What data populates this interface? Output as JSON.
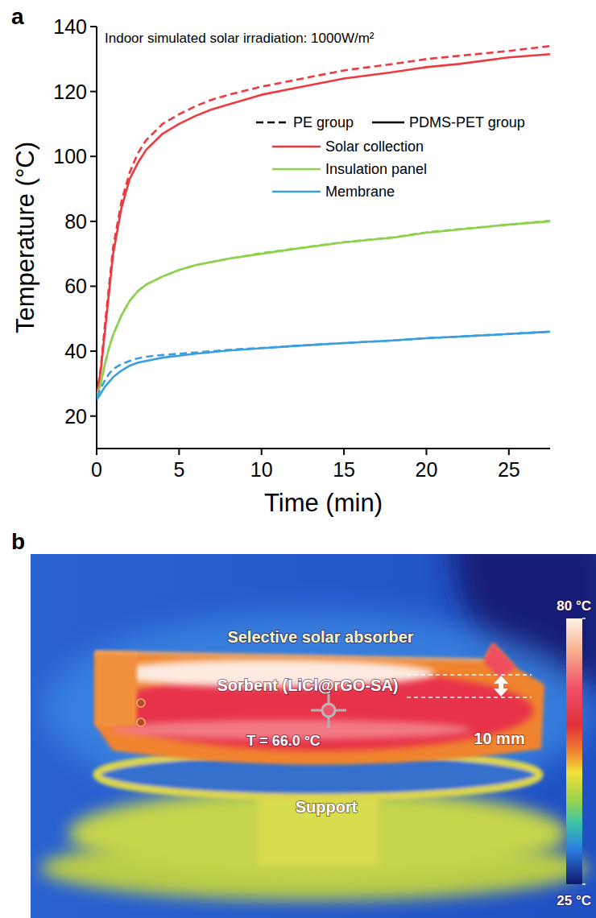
{
  "chart_data": {
    "type": "line",
    "panel_label": "a",
    "annotation": "Indoor simulated solar irradiation: 1000W/m²",
    "x_label": "Time (min)",
    "y_label": "Temperature (°C)",
    "xlim": [
      0,
      27.5
    ],
    "ylim": [
      10,
      140
    ],
    "xticks": [
      0,
      5,
      10,
      15,
      20,
      25
    ],
    "yticks": [
      20,
      40,
      60,
      80,
      100,
      120,
      140
    ],
    "x": [
      0,
      0.25,
      0.5,
      0.75,
      1,
      1.5,
      2,
      2.5,
      3,
      4,
      5,
      6,
      7,
      8,
      10,
      12,
      15,
      18,
      20,
      22,
      25,
      27.5
    ],
    "series": [
      {
        "name": "Solar collection",
        "group": "PE group",
        "color": "#ee3a3f",
        "line_style": "dashed",
        "values": [
          26,
          35,
          48,
          60,
          72,
          86,
          95,
          101,
          105,
          110,
          113,
          115.5,
          117.5,
          119,
          121.5,
          123.5,
          126.5,
          128.5,
          130,
          131,
          132.5,
          134
        ]
      },
      {
        "name": "Solar collection",
        "group": "PDMS-PET group",
        "color": "#ee3a3f",
        "line_style": "solid",
        "values": [
          26,
          34,
          46,
          58,
          70,
          84,
          93,
          98,
          102,
          107,
          110,
          112.5,
          114.5,
          116,
          119,
          121,
          124,
          126,
          127.5,
          128.5,
          130.5,
          131.5
        ]
      },
      {
        "name": "Insulation panel",
        "group": "PE group",
        "color": "#8fd14f",
        "line_style": "dashed",
        "values": [
          26,
          30,
          36,
          41,
          45,
          51,
          55.5,
          58.5,
          60.5,
          63,
          65,
          66.5,
          67.5,
          68.5,
          70.2,
          71.6,
          73.6,
          75.1,
          76.6,
          77.6,
          79,
          80.2
        ]
      },
      {
        "name": "Insulation panel",
        "group": "PDMS-PET group",
        "color": "#8fd14f",
        "line_style": "solid",
        "values": [
          26,
          30,
          36,
          41,
          45,
          51,
          55.5,
          58.5,
          60.5,
          63,
          65,
          66.5,
          67.5,
          68.5,
          70,
          71.5,
          73.5,
          75,
          76.5,
          77.5,
          79,
          80
        ]
      },
      {
        "name": "Membrane",
        "group": "PE group",
        "color": "#3a9fe0",
        "line_style": "dashed",
        "values": [
          26,
          28.5,
          31,
          33,
          34.5,
          36,
          37,
          37.8,
          38.3,
          38.8,
          39.2,
          39.6,
          40,
          40.4,
          41,
          41.6,
          42.5,
          43.3,
          44,
          44.5,
          45.3,
          46
        ]
      },
      {
        "name": "Membrane",
        "group": "PDMS-PET group",
        "color": "#3a9fe0",
        "line_style": "solid",
        "values": [
          25,
          27,
          29,
          30.5,
          32,
          34,
          35.5,
          36.5,
          37,
          38,
          38.6,
          39.2,
          39.7,
          40.2,
          40.9,
          41.6,
          42.5,
          43.3,
          44,
          44.5,
          45.3,
          46
        ]
      }
    ]
  },
  "thermal_image": {
    "panel_label": "b",
    "labels": {
      "absorber": "Selective solar absorber",
      "sorbent": "Sorbent (LiCl@rGO-SA)",
      "support": "Support"
    },
    "measured_temperature": {
      "value": 66.0,
      "label": "T = 66.0 °C"
    },
    "thickness": "10 mm",
    "colorbar": {
      "range": [
        25,
        80
      ],
      "ticks": [
        {
          "value": 80,
          "label": "80 °C"
        },
        {
          "value": 25,
          "label": "25 °C"
        }
      ]
    }
  }
}
